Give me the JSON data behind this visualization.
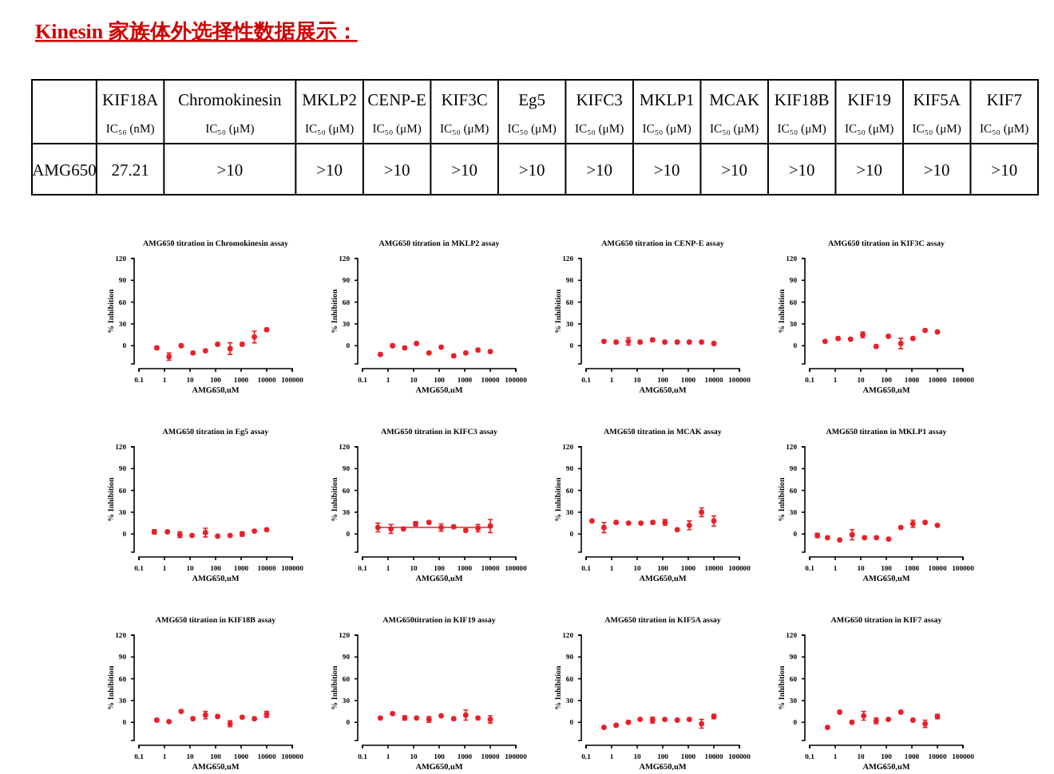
{
  "chart_data": [
    {
      "type": "other",
      "title": "Kinesin 家族体外选择性数据展示：",
      "categories": [
        "KIF18A",
        "Chromokinesin",
        "MKLP2",
        "CENP-E",
        "KIF3C",
        "Eg5",
        "KIFC3",
        "MKLP1",
        "MCAK",
        "KIF18B",
        "KIF19",
        "KIF5A",
        "KIF7"
      ],
      "annotations": [
        "IC₅₀ (nM)",
        "IC₅₀ (μM)",
        "IC₅₀ (μM)",
        "IC₅₀ (μM)",
        "IC₅₀ (μM)",
        "IC₅₀ (μM)",
        "IC₅₀ (μM)",
        "IC₅₀ (μM)",
        "IC₅₀ (μM)",
        "IC₅₀ (μM)",
        "IC₅₀ (μM)",
        "IC₅₀ (μM)",
        "IC₅₀ (μM)"
      ],
      "y_categories": [
        "AMG650"
      ],
      "cell_labels": [
        [
          "27.21",
          ">10",
          ">10",
          ">10",
          ">10",
          ">10",
          ">10",
          ">10",
          ">10",
          ">10",
          ">10",
          ">10",
          ">10"
        ]
      ]
    },
    {
      "type": "scatter",
      "title": "AMG650 titration in Chromokinesin assay",
      "xlabel": "AMG650,uM",
      "ylabel": "% Inhibition",
      "log": "x",
      "xlim": [
        0.1,
        100000
      ],
      "xticks": [
        0.1,
        1,
        10,
        100,
        1000,
        10000,
        100000
      ],
      "ylim": [
        -25,
        120
      ],
      "yticks": [
        0,
        30,
        60,
        90,
        120
      ],
      "marker": "circle",
      "x": [
        0.5,
        1.5,
        4.5,
        13,
        40,
        120,
        370,
        1100,
        3300,
        10000
      ],
      "series": [
        {
          "color": "#e8202a",
          "values": [
            -3,
            -15,
            0,
            -10,
            -7,
            2,
            -4,
            2,
            12,
            22
          ],
          "errors": [
            null,
            5,
            null,
            null,
            null,
            null,
            8,
            null,
            8,
            null
          ]
        }
      ]
    },
    {
      "type": "scatter",
      "title": "AMG650 titration in MKLP2 assay",
      "xlabel": "AMG650,uM",
      "ylabel": "% Inhibition",
      "log": "x",
      "xlim": [
        0.1,
        100000
      ],
      "xticks": [
        0.1,
        1,
        10,
        100,
        1000,
        10000,
        100000
      ],
      "ylim": [
        -25,
        120
      ],
      "yticks": [
        0,
        30,
        60,
        90,
        120
      ],
      "marker": "circle",
      "x": [
        0.5,
        1.5,
        4.5,
        13,
        40,
        120,
        370,
        1100,
        3300,
        10000
      ],
      "series": [
        {
          "color": "#e8202a",
          "values": [
            -12,
            0,
            -3,
            3,
            -10,
            -2,
            -14,
            -10,
            -6,
            -8
          ]
        }
      ]
    },
    {
      "type": "scatter",
      "title": "AMG650 titration  in CENP-E assay",
      "xlabel": "AMG650,uM",
      "ylabel": "% Inhibition",
      "log": "x",
      "xlim": [
        0.1,
        100000
      ],
      "xticks": [
        0.1,
        1,
        10,
        100,
        1000,
        10000,
        100000
      ],
      "ylim": [
        -25,
        120
      ],
      "yticks": [
        0,
        30,
        60,
        90,
        120
      ],
      "marker": "circle",
      "x": [
        0.5,
        1.5,
        4.5,
        13,
        40,
        120,
        370,
        1100,
        3300,
        10000
      ],
      "series": [
        {
          "color": "#e8202a",
          "values": [
            6,
            5,
            6,
            5,
            8,
            5,
            5,
            5,
            5,
            3
          ],
          "errors": [
            null,
            null,
            5,
            null,
            null,
            null,
            null,
            null,
            null,
            null
          ]
        }
      ]
    },
    {
      "type": "scatter",
      "title": "AMG650 titration  in KIF3C assay",
      "xlabel": "AMG650,uM",
      "ylabel": "% Inhibition",
      "log": "x",
      "xlim": [
        0.1,
        100000
      ],
      "xticks": [
        0.1,
        1,
        10,
        100,
        1000,
        10000,
        100000
      ],
      "ylim": [
        -25,
        120
      ],
      "yticks": [
        0,
        30,
        60,
        90,
        120
      ],
      "marker": "circle",
      "x": [
        0.4,
        1.3,
        4,
        12,
        40,
        120,
        370,
        1100,
        3300,
        10000
      ],
      "series": [
        {
          "color": "#e8202a",
          "values": [
            6,
            10,
            9,
            15,
            -1,
            13,
            3,
            10,
            21,
            19
          ],
          "errors": [
            null,
            null,
            null,
            4,
            null,
            null,
            7,
            null,
            null,
            null
          ]
        }
      ]
    },
    {
      "type": "scatter",
      "title": "AMG650 titration in Eg5 assay",
      "xlabel": "AMG650,uM",
      "ylabel": "% Inhibition",
      "log": "x",
      "xlim": [
        0.1,
        100000
      ],
      "xticks": [
        0.1,
        1,
        10,
        100,
        1000,
        10000,
        100000
      ],
      "ylim": [
        -25,
        120
      ],
      "yticks": [
        0,
        30,
        60,
        90,
        120
      ],
      "marker": "circle",
      "x": [
        0.4,
        1.3,
        4,
        12,
        40,
        120,
        370,
        1100,
        3300,
        10000
      ],
      "series": [
        {
          "color": "#e8202a",
          "values": [
            3,
            3,
            -1,
            -2,
            2,
            -3,
            -2,
            0,
            4,
            6
          ],
          "errors": [
            3,
            null,
            4,
            null,
            6,
            null,
            null,
            3,
            null,
            null
          ]
        }
      ]
    },
    {
      "type": "scatter",
      "title": "AMG650 titration in KIFC3 assay",
      "xlabel": "AMG650,uM",
      "ylabel": "% Inhibition",
      "log": "x",
      "xlim": [
        0.1,
        100000
      ],
      "xticks": [
        0.1,
        1,
        10,
        100,
        1000,
        10000,
        100000
      ],
      "ylim": [
        -25,
        120
      ],
      "yticks": [
        0,
        30,
        60,
        90,
        120
      ],
      "marker": "circle",
      "x": [
        0.4,
        1.3,
        4,
        12,
        40,
        120,
        370,
        1100,
        3300,
        10000
      ],
      "series": [
        {
          "color": "#e8202a",
          "values": [
            9,
            7,
            7,
            14,
            16,
            9,
            10,
            5,
            8,
            11
          ],
          "errors": [
            6,
            6,
            null,
            3,
            null,
            5,
            null,
            null,
            5,
            9
          ]
        },
        {
          "type": "line",
          "marker": "none",
          "color": "#e8202a",
          "x": [
            0.4,
            10000
          ],
          "values": [
            9,
            9
          ]
        }
      ]
    },
    {
      "type": "scatter",
      "title": "AMG650 titration in MCAK assay",
      "xlabel": "AMG650,uM",
      "ylabel": "% Inhibition",
      "log": "x",
      "xlim": [
        0.1,
        100000
      ],
      "xticks": [
        0.1,
        1,
        10,
        100,
        1000,
        10000,
        100000
      ],
      "ylim": [
        -25,
        120
      ],
      "yticks": [
        0,
        30,
        60,
        90,
        120
      ],
      "marker": "circle",
      "x": [
        0.17,
        0.5,
        1.5,
        4.6,
        14,
        41,
        123,
        370,
        1100,
        3300,
        10000
      ],
      "series": [
        {
          "color": "#e8202a",
          "values": [
            18,
            9,
            16,
            15,
            15,
            16,
            16,
            6,
            12,
            30,
            18
          ],
          "errors": [
            null,
            7,
            null,
            null,
            null,
            null,
            4,
            null,
            6,
            6,
            7
          ]
        }
      ]
    },
    {
      "type": "scatter",
      "title": "AMG650 titration in MKLP1 assay",
      "xlabel": "AMG650,uM",
      "ylabel": "% Inhibition",
      "log": "x",
      "xlim": [
        0.1,
        100000
      ],
      "xticks": [
        0.1,
        1,
        10,
        100,
        1000,
        10000,
        100000
      ],
      "ylim": [
        -25,
        120
      ],
      "yticks": [
        0,
        30,
        60,
        90,
        120
      ],
      "marker": "circle",
      "x": [
        0.2,
        0.5,
        1.5,
        4.6,
        14,
        41,
        123,
        370,
        1100,
        3300,
        10000
      ],
      "series": [
        {
          "color": "#e8202a",
          "values": [
            -2,
            -5,
            -8,
            -1,
            -5,
            -5,
            -7,
            9,
            14,
            16,
            12
          ],
          "errors": [
            3,
            null,
            null,
            7,
            null,
            null,
            null,
            null,
            5,
            null,
            null
          ]
        }
      ]
    },
    {
      "type": "scatter",
      "title": "AMG650 titration in KIF18B assay",
      "xlabel": "AMG650,uM",
      "ylabel": "% Inhibition",
      "log": "x",
      "xlim": [
        0.1,
        100000
      ],
      "xticks": [
        0.1,
        1,
        10,
        100,
        1000,
        10000,
        100000
      ],
      "ylim": [
        -25,
        120
      ],
      "yticks": [
        0,
        30,
        60,
        90,
        120
      ],
      "marker": "circle",
      "x": [
        0.5,
        1.5,
        4.5,
        13,
        40,
        120,
        370,
        1100,
        3300,
        10000
      ],
      "series": [
        {
          "color": "#e8202a",
          "values": [
            3,
            1,
            15,
            5,
            10,
            8,
            -2,
            7,
            5,
            11
          ],
          "errors": [
            null,
            null,
            null,
            null,
            5,
            null,
            4,
            null,
            null,
            4
          ]
        }
      ]
    },
    {
      "type": "scatter",
      "title": "AMG650titration in KIF19 assay",
      "xlabel": "AMG650,uM",
      "ylabel": "% Inhibition",
      "log": "x",
      "xlim": [
        0.1,
        100000
      ],
      "xticks": [
        0.1,
        1,
        10,
        100,
        1000,
        10000,
        100000
      ],
      "ylim": [
        -25,
        120
      ],
      "yticks": [
        0,
        30,
        60,
        90,
        120
      ],
      "marker": "circle",
      "x": [
        0.5,
        1.5,
        4.5,
        13,
        40,
        120,
        370,
        1100,
        3300,
        10000
      ],
      "series": [
        {
          "color": "#e8202a",
          "values": [
            6,
            12,
            6,
            6,
            4,
            9,
            5,
            10,
            6,
            4
          ],
          "errors": [
            null,
            null,
            3,
            null,
            4,
            null,
            null,
            7,
            null,
            5
          ]
        }
      ]
    },
    {
      "type": "scatter",
      "title": "AMG650 titration in KIF5A assay",
      "xlabel": "AMG650,uM",
      "ylabel": "% Inhibition",
      "log": "x",
      "xlim": [
        0.1,
        100000
      ],
      "xticks": [
        0.1,
        1,
        10,
        100,
        1000,
        10000,
        100000
      ],
      "ylim": [
        -25,
        120
      ],
      "yticks": [
        0,
        30,
        60,
        90,
        120
      ],
      "marker": "circle",
      "x": [
        0.5,
        1.5,
        4.5,
        13,
        40,
        120,
        370,
        1100,
        3300,
        10000
      ],
      "series": [
        {
          "color": "#e8202a",
          "values": [
            -7,
            -4,
            0,
            4,
            3,
            4,
            3,
            4,
            -2,
            8
          ],
          "errors": [
            null,
            null,
            null,
            null,
            4,
            null,
            null,
            null,
            6,
            3
          ]
        }
      ]
    },
    {
      "type": "scatter",
      "title": "AMG650 titration in KIF7 assay",
      "xlabel": "AMG650,uM",
      "ylabel": "% Inhibition",
      "log": "x",
      "xlim": [
        0.1,
        100000
      ],
      "xticks": [
        0.1,
        1,
        10,
        100,
        1000,
        10000,
        100000
      ],
      "ylim": [
        -25,
        120
      ],
      "yticks": [
        0,
        30,
        60,
        90,
        120
      ],
      "marker": "circle",
      "x": [
        0.5,
        1.5,
        4.5,
        13,
        40,
        120,
        370,
        1100,
        3300,
        10000
      ],
      "series": [
        {
          "color": "#e8202a",
          "values": [
            -7,
            14,
            0,
            9,
            2,
            4,
            14,
            3,
            -2,
            8
          ],
          "errors": [
            null,
            null,
            null,
            6,
            4,
            null,
            null,
            null,
            5,
            3
          ]
        }
      ]
    }
  ]
}
